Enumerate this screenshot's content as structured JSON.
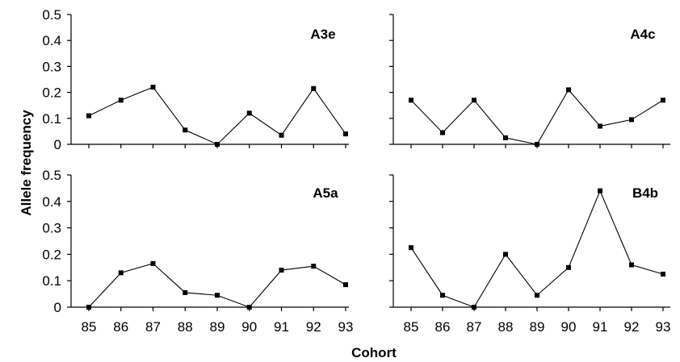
{
  "chart_data": [
    {
      "type": "line",
      "title": "A3e",
      "x": [
        "85",
        "86",
        "87",
        "88",
        "89",
        "90",
        "91",
        "92",
        "93"
      ],
      "values": [
        0.11,
        0.17,
        0.22,
        0.055,
        0.0,
        0.12,
        0.035,
        0.215,
        0.04
      ],
      "ylim": [
        0,
        0.5
      ],
      "yticks": [
        "0",
        "0.1",
        "0.2",
        "0.3",
        "0.4",
        "0.5"
      ]
    },
    {
      "type": "line",
      "title": "A4c",
      "x": [
        "85",
        "86",
        "87",
        "88",
        "89",
        "90",
        "91",
        "92",
        "93"
      ],
      "values": [
        0.17,
        0.045,
        0.17,
        0.025,
        0.0,
        0.21,
        0.07,
        0.095,
        0.17
      ],
      "ylim": [
        0,
        0.5
      ],
      "yticks": []
    },
    {
      "type": "line",
      "title": "A5a",
      "x": [
        "85",
        "86",
        "87",
        "88",
        "89",
        "90",
        "91",
        "92",
        "93"
      ],
      "values": [
        0.0,
        0.13,
        0.165,
        0.055,
        0.045,
        0.0,
        0.14,
        0.155,
        0.085
      ],
      "ylim": [
        0,
        0.5
      ],
      "yticks": [
        "0",
        "0.1",
        "0.2",
        "0.3",
        "0.4",
        "0.5"
      ]
    },
    {
      "type": "line",
      "title": "B4b",
      "x": [
        "85",
        "86",
        "87",
        "88",
        "89",
        "90",
        "91",
        "92",
        "93"
      ],
      "values": [
        0.225,
        0.045,
        0.0,
        0.2,
        0.045,
        0.15,
        0.44,
        0.16,
        0.125
      ],
      "ylim": [
        0,
        0.5
      ],
      "yticks": []
    }
  ],
  "xlabel": "Cohort",
  "ylabel": "Allele frequency"
}
